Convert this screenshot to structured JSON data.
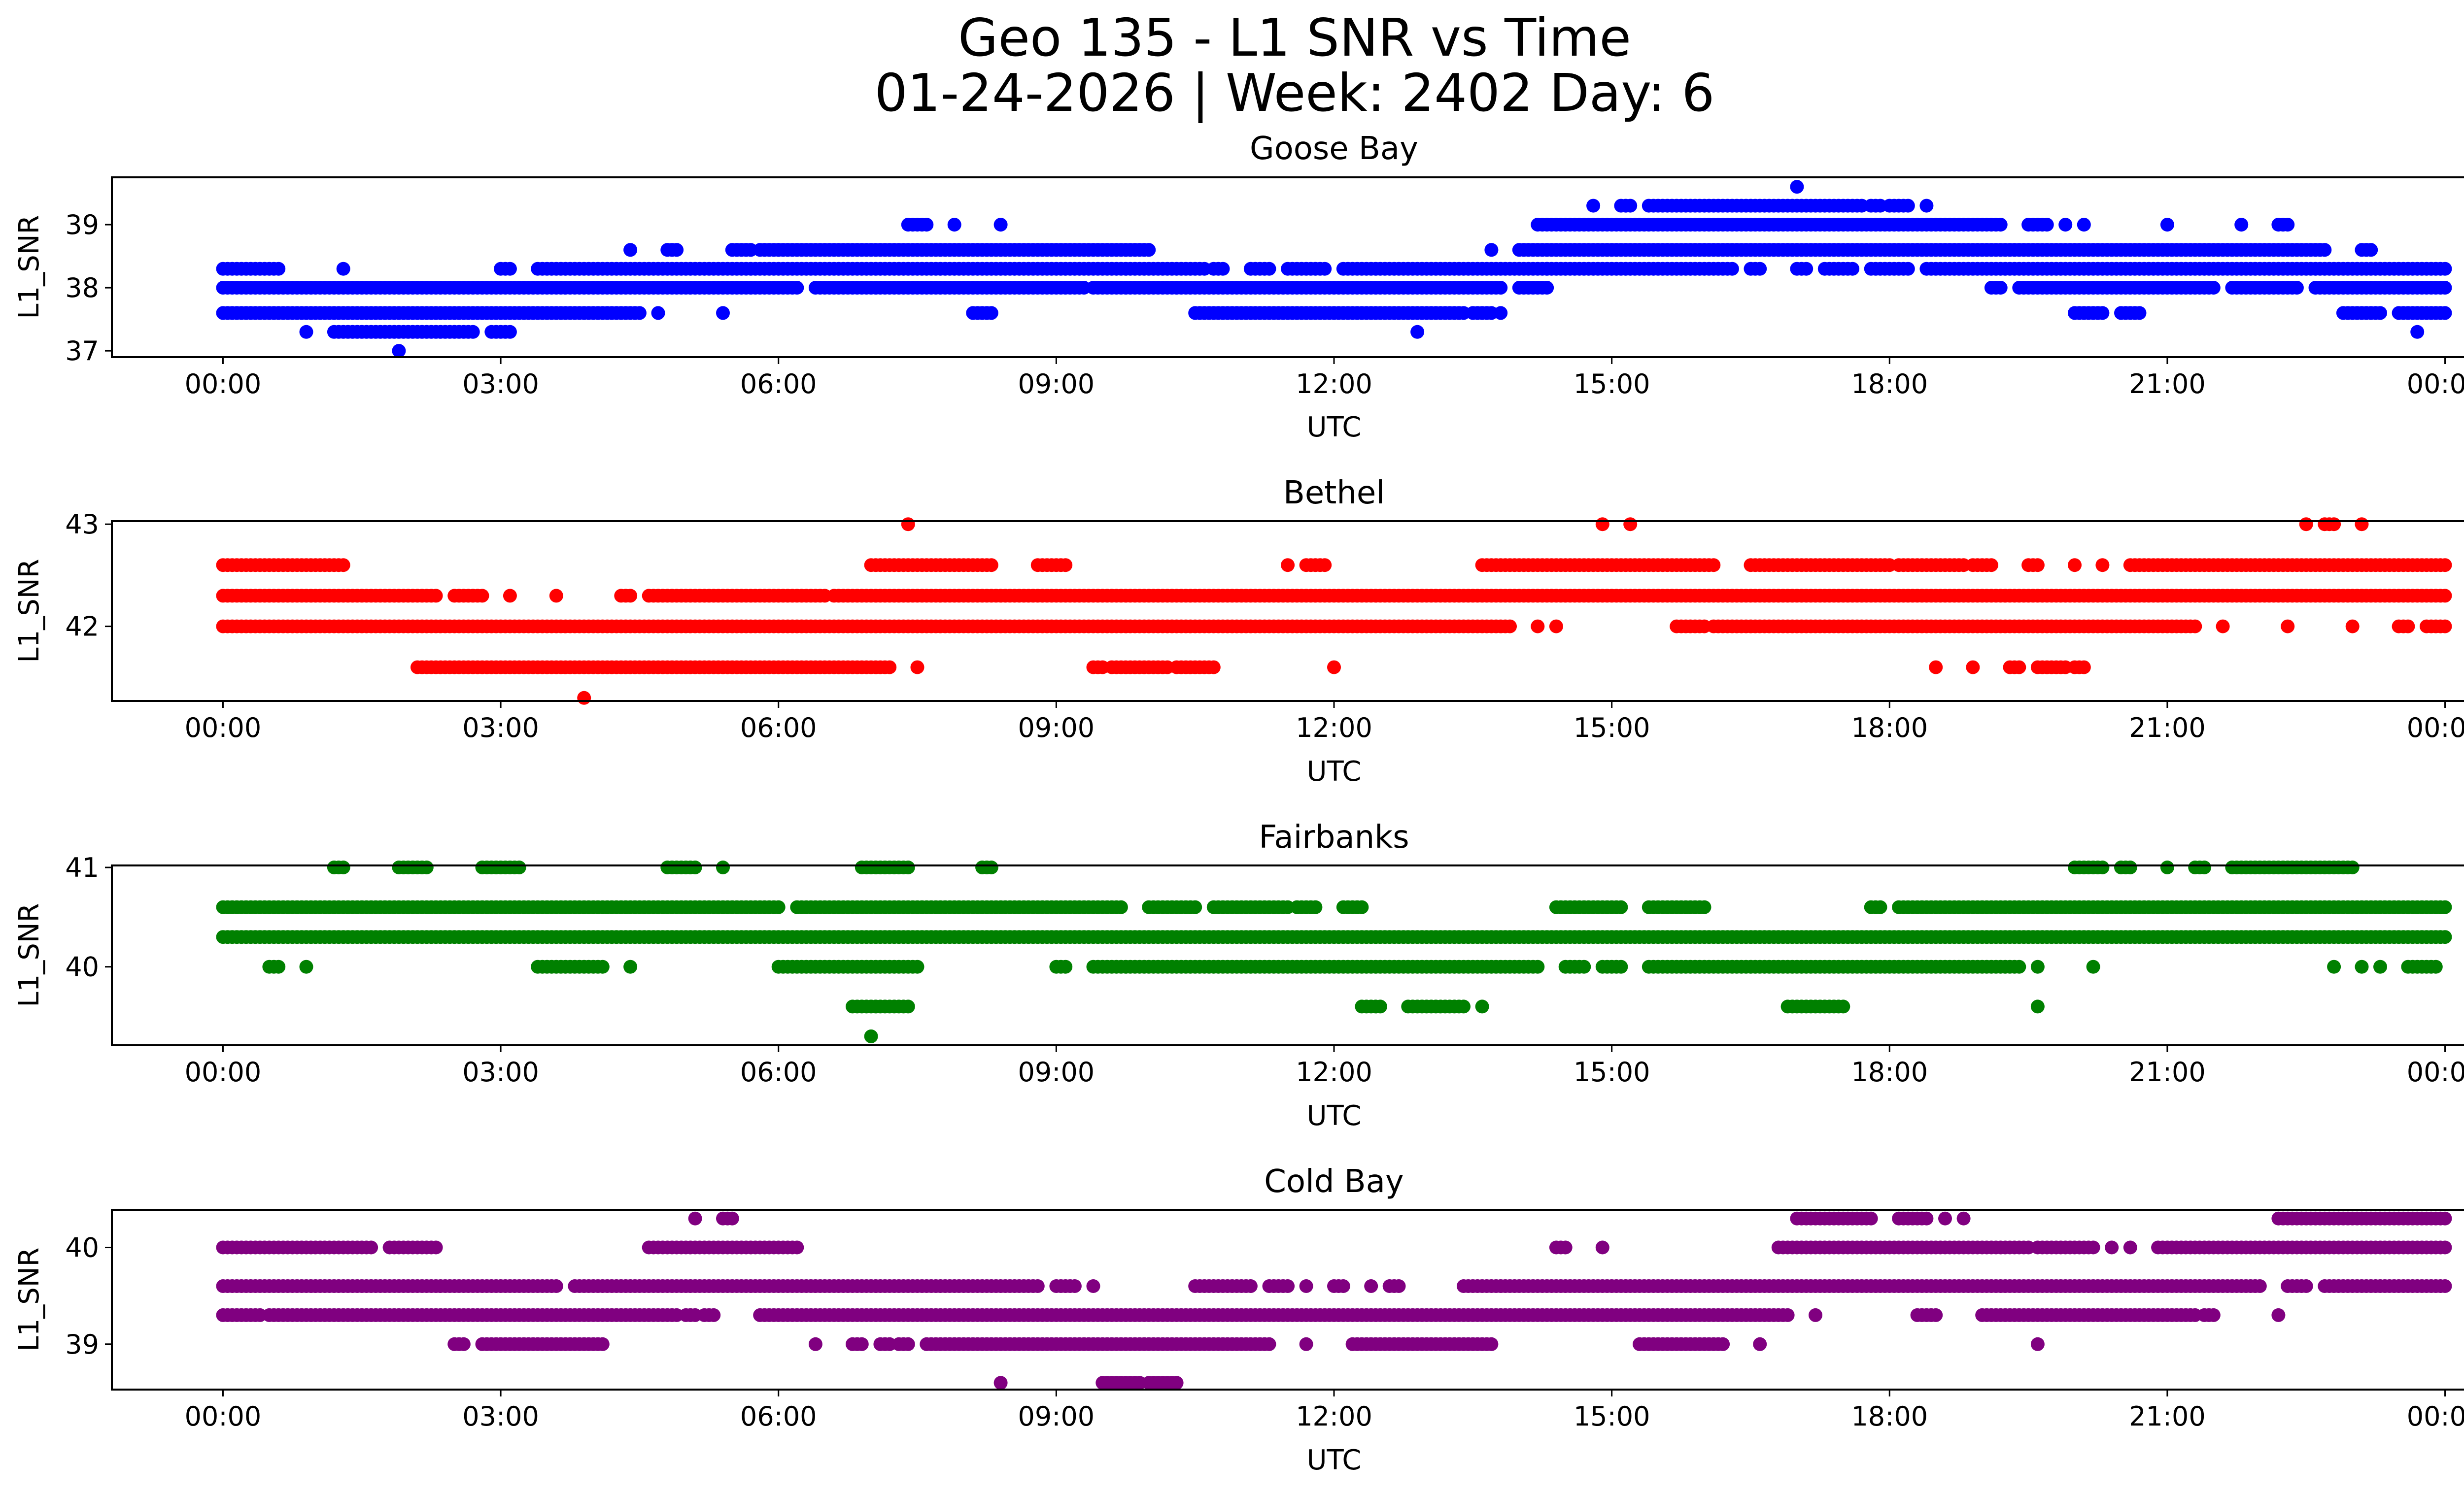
{
  "figure": {
    "title_line1": "Geo 135 - L1 SNR vs Time",
    "title_line2": "01-24-2026 | Week: 2402 Day: 6"
  },
  "chart_data": [
    {
      "type": "scatter",
      "title": "Goose Bay",
      "xlabel": "UTC",
      "ylabel": "L1_SNR",
      "color": "#0000ff",
      "xlim_hours": [
        -1.2,
        25.2
      ],
      "ylim": [
        36.9,
        39.75
      ],
      "x_ticks": [
        0,
        3,
        6,
        9,
        12,
        15,
        18,
        21,
        24
      ],
      "x_tick_labels": [
        "00:00",
        "03:00",
        "06:00",
        "09:00",
        "12:00",
        "15:00",
        "18:00",
        "21:00",
        "00:00"
      ],
      "y_ticks": [
        37,
        38,
        39
      ],
      "y_tick_labels": [
        "37",
        "38",
        "39"
      ],
      "series": [
        {
          "y": 39.6,
          "ranges": [
            [
              17.0,
              17.0
            ]
          ]
        },
        {
          "y": 39.3,
          "ranges": [
            [
              14.8,
              14.8
            ],
            [
              15.1,
              15.2
            ],
            [
              15.4,
              17.7
            ],
            [
              17.8,
              17.9
            ],
            [
              18.0,
              18.2
            ],
            [
              18.4,
              18.4
            ]
          ]
        },
        {
          "y": 39.0,
          "ranges": [
            [
              7.4,
              7.6
            ],
            [
              7.9,
              7.9
            ],
            [
              8.4,
              8.4
            ],
            [
              14.2,
              19.2
            ],
            [
              19.5,
              19.7
            ],
            [
              19.9,
              19.9
            ],
            [
              20.1,
              20.1
            ],
            [
              21.0,
              21.0
            ],
            [
              21.8,
              21.8
            ],
            [
              22.2,
              22.3
            ]
          ]
        },
        {
          "y": 38.6,
          "ranges": [
            [
              4.4,
              4.4
            ],
            [
              4.8,
              4.9
            ],
            [
              5.5,
              5.7
            ],
            [
              5.8,
              6.0
            ],
            [
              6.0,
              10.0
            ],
            [
              13.7,
              13.7
            ],
            [
              14.0,
              22.7
            ],
            [
              23.1,
              23.2
            ]
          ]
        },
        {
          "y": 38.3,
          "ranges": [
            [
              0.0,
              0.6
            ],
            [
              1.3,
              1.3
            ],
            [
              3.0,
              3.1
            ],
            [
              3.4,
              10.6
            ],
            [
              10.7,
              10.8
            ],
            [
              11.1,
              11.3
            ],
            [
              11.5,
              11.9
            ],
            [
              12.1,
              14.3
            ],
            [
              14.3,
              16.3
            ],
            [
              16.5,
              16.6
            ],
            [
              17.0,
              17.1
            ],
            [
              17.3,
              17.6
            ],
            [
              17.8,
              18.2
            ],
            [
              18.4,
              24.0
            ]
          ]
        },
        {
          "y": 38.0,
          "ranges": [
            [
              0.0,
              6.2
            ],
            [
              6.4,
              9.3
            ],
            [
              9.4,
              10.3
            ],
            [
              10.3,
              13.8
            ],
            [
              14.0,
              14.3
            ],
            [
              19.1,
              19.2
            ],
            [
              19.4,
              21.5
            ],
            [
              21.7,
              22.4
            ],
            [
              22.6,
              24.0
            ]
          ]
        },
        {
          "y": 37.6,
          "ranges": [
            [
              0.0,
              4.5
            ],
            [
              4.7,
              4.7
            ],
            [
              5.4,
              5.4
            ],
            [
              8.1,
              8.3
            ],
            [
              10.5,
              13.4
            ],
            [
              13.5,
              13.7
            ],
            [
              13.8,
              13.8
            ],
            [
              20.0,
              20.3
            ],
            [
              20.5,
              20.7
            ],
            [
              22.9,
              23.3
            ],
            [
              23.5,
              24.0
            ]
          ]
        },
        {
          "y": 37.3,
          "ranges": [
            [
              0.9,
              0.9
            ],
            [
              1.2,
              2.7
            ],
            [
              2.9,
              3.1
            ],
            [
              12.9,
              12.9
            ],
            [
              23.7,
              23.7
            ]
          ]
        },
        {
          "y": 37.0,
          "ranges": [
            [
              1.9,
              1.9
            ]
          ]
        }
      ]
    },
    {
      "type": "scatter",
      "title": "Bethel",
      "xlabel": "UTC",
      "ylabel": "L1_SNR",
      "color": "#ff0000",
      "xlim_hours": [
        -1.2,
        25.2
      ],
      "ylim": [
        41.27,
        43.03
      ],
      "x_ticks": [
        0,
        3,
        6,
        9,
        12,
        15,
        18,
        21,
        24
      ],
      "x_tick_labels": [
        "00:00",
        "03:00",
        "06:00",
        "09:00",
        "12:00",
        "15:00",
        "18:00",
        "21:00",
        "00:00"
      ],
      "y_ticks": [
        42,
        43
      ],
      "y_tick_labels": [
        "42",
        "43"
      ],
      "series": [
        {
          "y": 43.0,
          "ranges": [
            [
              7.4,
              7.4
            ],
            [
              14.9,
              14.9
            ],
            [
              15.2,
              15.2
            ],
            [
              22.5,
              22.5
            ],
            [
              22.7,
              22.8
            ],
            [
              23.1,
              23.1
            ]
          ]
        },
        {
          "y": 42.6,
          "ranges": [
            [
              0.0,
              1.3
            ],
            [
              7.0,
              8.3
            ],
            [
              8.8,
              9.1
            ],
            [
              11.5,
              11.5
            ],
            [
              11.7,
              11.9
            ],
            [
              13.6,
              16.1
            ],
            [
              16.5,
              18.0
            ],
            [
              18.1,
              18.8
            ],
            [
              18.9,
              19.1
            ],
            [
              19.5,
              19.6
            ],
            [
              20.0,
              20.0
            ],
            [
              20.3,
              20.3
            ],
            [
              20.6,
              24.0
            ]
          ]
        },
        {
          "y": 42.3,
          "ranges": [
            [
              0.0,
              2.3
            ],
            [
              2.5,
              2.8
            ],
            [
              3.1,
              3.1
            ],
            [
              3.6,
              3.6
            ],
            [
              4.3,
              4.4
            ],
            [
              4.6,
              6.5
            ],
            [
              6.6,
              24.0
            ]
          ]
        },
        {
          "y": 42.0,
          "ranges": [
            [
              0.0,
              13.9
            ],
            [
              14.2,
              14.2
            ],
            [
              14.4,
              14.4
            ],
            [
              15.7,
              16.0
            ],
            [
              16.1,
              21.3
            ],
            [
              21.6,
              21.6
            ],
            [
              22.3,
              22.3
            ],
            [
              23.0,
              23.0
            ],
            [
              23.5,
              23.6
            ],
            [
              23.8,
              24.0
            ]
          ]
        },
        {
          "y": 41.6,
          "ranges": [
            [
              2.1,
              7.2
            ],
            [
              7.5,
              7.5
            ],
            [
              9.4,
              9.5
            ],
            [
              9.6,
              10.2
            ],
            [
              10.3,
              10.7
            ],
            [
              12.0,
              12.0
            ],
            [
              18.5,
              18.5
            ],
            [
              18.9,
              18.9
            ],
            [
              19.3,
              19.4
            ],
            [
              19.6,
              19.9
            ],
            [
              20.0,
              20.1
            ]
          ]
        },
        {
          "y": 41.3,
          "ranges": [
            [
              3.9,
              3.9
            ]
          ]
        }
      ]
    },
    {
      "type": "scatter",
      "title": "Fairbanks",
      "xlabel": "UTC",
      "ylabel": "L1_SNR",
      "color": "#008000",
      "xlim_hours": [
        -1.2,
        25.2
      ],
      "ylim": [
        39.21,
        41.02
      ],
      "x_ticks": [
        0,
        3,
        6,
        9,
        12,
        15,
        18,
        21,
        24
      ],
      "x_tick_labels": [
        "00:00",
        "03:00",
        "06:00",
        "09:00",
        "12:00",
        "15:00",
        "18:00",
        "21:00",
        "00:00"
      ],
      "y_ticks": [
        40,
        41
      ],
      "y_tick_labels": [
        "40",
        "41"
      ],
      "series": [
        {
          "y": 41.0,
          "ranges": [
            [
              1.2,
              1.3
            ],
            [
              1.9,
              2.2
            ],
            [
              2.8,
              3.2
            ],
            [
              4.8,
              5.1
            ],
            [
              5.4,
              5.4
            ],
            [
              6.9,
              7.4
            ],
            [
              8.2,
              8.3
            ],
            [
              20.0,
              20.3
            ],
            [
              20.5,
              20.6
            ],
            [
              21.0,
              21.0
            ],
            [
              21.3,
              21.4
            ],
            [
              21.7,
              23.0
            ]
          ]
        },
        {
          "y": 40.6,
          "ranges": [
            [
              0.0,
              6.0
            ],
            [
              6.2,
              9.7
            ],
            [
              10.0,
              10.5
            ],
            [
              10.7,
              11.5
            ],
            [
              11.6,
              11.8
            ],
            [
              12.1,
              12.3
            ],
            [
              14.4,
              15.1
            ],
            [
              15.4,
              16.0
            ],
            [
              17.8,
              17.9
            ],
            [
              18.1,
              24.0
            ]
          ]
        },
        {
          "y": 40.3,
          "ranges": [
            [
              0.0,
              24.0
            ]
          ]
        },
        {
          "y": 40.0,
          "ranges": [
            [
              0.5,
              0.6
            ],
            [
              0.9,
              0.9
            ],
            [
              3.4,
              4.1
            ],
            [
              4.4,
              4.4
            ],
            [
              6.0,
              7.5
            ],
            [
              9.0,
              9.1
            ],
            [
              9.4,
              14.2
            ],
            [
              14.5,
              14.7
            ],
            [
              14.9,
              15.1
            ],
            [
              15.4,
              19.4
            ],
            [
              19.6,
              19.6
            ],
            [
              20.2,
              20.2
            ],
            [
              22.8,
              22.8
            ],
            [
              23.1,
              23.1
            ],
            [
              23.3,
              23.3
            ],
            [
              23.6,
              23.9
            ]
          ]
        },
        {
          "y": 39.6,
          "ranges": [
            [
              6.8,
              7.4
            ],
            [
              12.3,
              12.5
            ],
            [
              12.8,
              13.4
            ],
            [
              13.6,
              13.6
            ],
            [
              16.9,
              17.5
            ],
            [
              19.6,
              19.6
            ]
          ]
        },
        {
          "y": 39.3,
          "ranges": [
            [
              7.0,
              7.0
            ]
          ]
        }
      ]
    },
    {
      "type": "scatter",
      "title": "Cold Bay",
      "xlabel": "UTC",
      "ylabel": "L1_SNR",
      "color": "#800080",
      "xlim_hours": [
        -1.2,
        25.2
      ],
      "ylim": [
        38.53,
        40.39
      ],
      "x_ticks": [
        0,
        3,
        6,
        9,
        12,
        15,
        18,
        21,
        24
      ],
      "x_tick_labels": [
        "00:00",
        "03:00",
        "06:00",
        "09:00",
        "12:00",
        "15:00",
        "18:00",
        "21:00",
        "00:00"
      ],
      "y_ticks": [
        39,
        40
      ],
      "y_tick_labels": [
        "39",
        "40"
      ],
      "series": [
        {
          "y": 40.3,
          "ranges": [
            [
              5.1,
              5.1
            ],
            [
              5.4,
              5.5
            ],
            [
              17.0,
              17.8
            ],
            [
              18.1,
              18.4
            ],
            [
              18.6,
              18.6
            ],
            [
              18.8,
              18.8
            ],
            [
              22.2,
              24.0
            ]
          ]
        },
        {
          "y": 40.0,
          "ranges": [
            [
              0.0,
              1.6
            ],
            [
              1.8,
              2.3
            ],
            [
              4.6,
              6.2
            ],
            [
              14.4,
              14.5
            ],
            [
              14.9,
              14.9
            ],
            [
              16.8,
              19.5
            ],
            [
              19.6,
              20.2
            ],
            [
              20.4,
              20.4
            ],
            [
              20.6,
              20.6
            ],
            [
              20.9,
              24.0
            ]
          ]
        },
        {
          "y": 39.6,
          "ranges": [
            [
              0.0,
              3.6
            ],
            [
              3.8,
              8.8
            ],
            [
              9.0,
              9.2
            ],
            [
              9.4,
              9.4
            ],
            [
              10.5,
              11.1
            ],
            [
              11.3,
              11.5
            ],
            [
              11.7,
              11.7
            ],
            [
              12.0,
              12.1
            ],
            [
              12.4,
              12.4
            ],
            [
              12.6,
              12.7
            ],
            [
              13.4,
              22.0
            ],
            [
              22.3,
              22.5
            ],
            [
              22.7,
              24.0
            ]
          ]
        },
        {
          "y": 39.3,
          "ranges": [
            [
              0.0,
              0.4
            ],
            [
              0.5,
              4.9
            ],
            [
              5.0,
              5.1
            ],
            [
              5.2,
              5.3
            ],
            [
              5.8,
              16.9
            ],
            [
              17.2,
              17.2
            ],
            [
              18.3,
              18.5
            ],
            [
              19.0,
              21.3
            ],
            [
              21.4,
              21.5
            ],
            [
              22.2,
              22.2
            ]
          ]
        },
        {
          "y": 39.0,
          "ranges": [
            [
              2.5,
              2.6
            ],
            [
              2.8,
              4.1
            ],
            [
              6.4,
              6.4
            ],
            [
              6.8,
              6.9
            ],
            [
              7.1,
              7.2
            ],
            [
              7.3,
              7.4
            ],
            [
              7.6,
              11.3
            ],
            [
              11.7,
              11.7
            ],
            [
              12.2,
              13.7
            ],
            [
              15.3,
              16.2
            ],
            [
              16.6,
              16.6
            ],
            [
              19.6,
              19.6
            ]
          ]
        },
        {
          "y": 38.6,
          "ranges": [
            [
              8.4,
              8.4
            ],
            [
              9.5,
              9.9
            ],
            [
              10.0,
              10.3
            ]
          ]
        }
      ]
    }
  ]
}
